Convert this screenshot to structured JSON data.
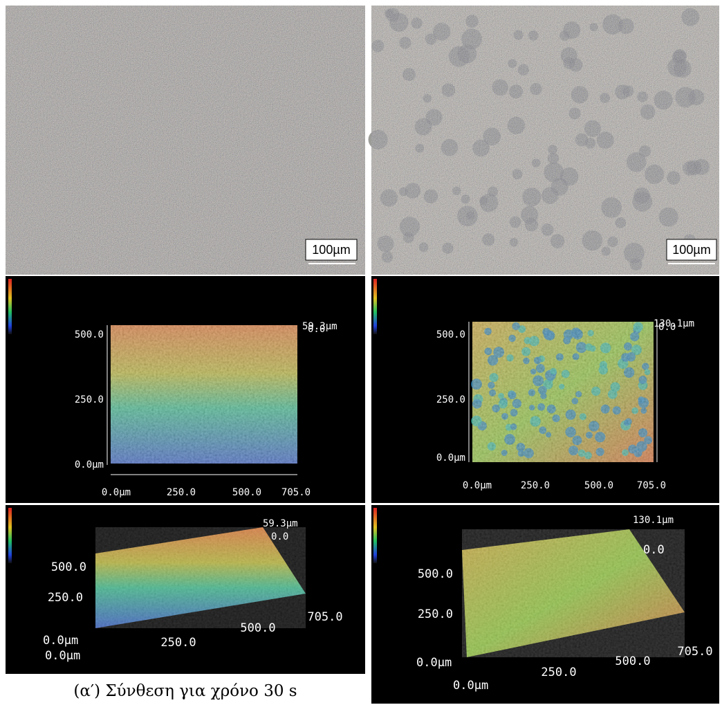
{
  "optical": {
    "left": {
      "scale_bar": "100µm"
    },
    "right": {
      "scale_bar": "100µm"
    }
  },
  "height_map": {
    "left": {
      "z_max": "59.3µm",
      "z_min": "0.0",
      "y_labels": [
        "500.0",
        "250.0",
        "0.0µm"
      ],
      "x_labels": [
        "0.0µm",
        "250.0",
        "500.0",
        "705.0"
      ]
    },
    "right": {
      "z_max": "130.1µm",
      "z_min": "0.0",
      "y_labels": [
        "500.0",
        "250.0",
        "0.0µm"
      ],
      "x_labels": [
        "0.0µm",
        "250.0",
        "500.0",
        "705.0"
      ]
    }
  },
  "view_3d": {
    "left": {
      "z_max": "59.3µm",
      "z_min": "0.0",
      "y_labels": [
        "500.0",
        "250.0",
        "0.0µm"
      ],
      "x_labels": [
        "0.0µm",
        "250.0",
        "500.0",
        "705.0"
      ]
    },
    "right": {
      "z_max": "130.1µm",
      "z_min": "0.0",
      "y_labels": [
        "500.0",
        "250.0",
        "0.0µm"
      ],
      "x_labels": [
        "0.0µm",
        "250.0",
        "500.0",
        "705.0"
      ]
    }
  },
  "caption": "(α′) Σύνθεση για χρόνο 30 s"
}
